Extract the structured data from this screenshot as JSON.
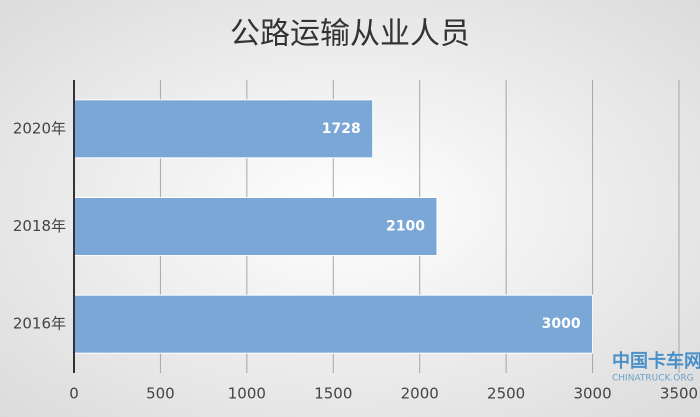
{
  "chart_data": {
    "type": "bar",
    "orientation": "horizontal",
    "title": "公路运输从业人员",
    "categories": [
      "2020年",
      "2018年",
      "2016年"
    ],
    "values": [
      1728,
      2100,
      3000
    ],
    "color": "#7ba7d7",
    "xlim": [
      0,
      3500
    ],
    "xticks": [
      0,
      500,
      1000,
      1500,
      2000,
      2500,
      3000,
      3500
    ],
    "grid": true,
    "watermark": [
      "中国卡车网",
      "CHINATRUCK.ORG"
    ]
  }
}
